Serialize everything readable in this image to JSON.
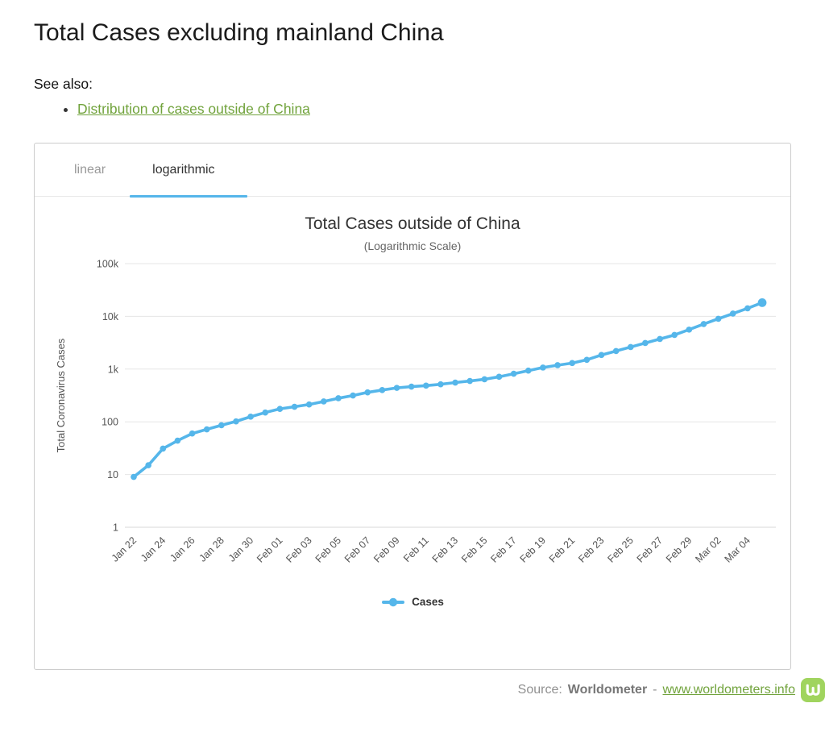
{
  "page": {
    "title": "Total Cases excluding mainland China",
    "see_also_label": "See also:",
    "see_also_link": "Distribution of cases outside of China"
  },
  "tabs": {
    "linear_label": "linear",
    "logarithmic_label": "logarithmic",
    "active": "logarithmic"
  },
  "chart_data": {
    "type": "line",
    "title": "Total Cases outside of China",
    "subtitle": "(Logarithmic Scale)",
    "xlabel": "",
    "ylabel": "Total Coronavirus Cases",
    "yscale": "log",
    "ylim": [
      1,
      100000
    ],
    "ytick_labels": [
      "1",
      "10",
      "100",
      "1k",
      "10k",
      "100k"
    ],
    "grid": "horizontal",
    "legend_position": "bottom",
    "x_label_every": 2,
    "line_color": "#55b6ea",
    "grid_color": "#e6e6e6",
    "axis_label_color": "#555555",
    "categories": [
      "Jan 22",
      "Jan 23",
      "Jan 24",
      "Jan 25",
      "Jan 26",
      "Jan 27",
      "Jan 28",
      "Jan 29",
      "Jan 30",
      "Jan 31",
      "Feb 01",
      "Feb 02",
      "Feb 03",
      "Feb 04",
      "Feb 05",
      "Feb 06",
      "Feb 07",
      "Feb 08",
      "Feb 09",
      "Feb 10",
      "Feb 11",
      "Feb 12",
      "Feb 13",
      "Feb 14",
      "Feb 15",
      "Feb 16",
      "Feb 17",
      "Feb 18",
      "Feb 19",
      "Feb 20",
      "Feb 21",
      "Feb 22",
      "Feb 23",
      "Feb 24",
      "Feb 25",
      "Feb 26",
      "Feb 27",
      "Feb 28",
      "Feb 29",
      "Mar 01",
      "Mar 02",
      "Mar 03",
      "Mar 04",
      "Mar 05"
    ],
    "series": [
      {
        "name": "Cases",
        "values": [
          9,
          15,
          31,
          44,
          60,
          72,
          86,
          102,
          125,
          150,
          176,
          193,
          213,
          243,
          280,
          315,
          362,
          400,
          440,
          465,
          485,
          515,
          555,
          595,
          640,
          715,
          815,
          935,
          1070,
          1185,
          1300,
          1500,
          1850,
          2200,
          2620,
          3120,
          3720,
          4440,
          5600,
          7150,
          9000,
          11300,
          14200,
          18200
        ]
      }
    ]
  },
  "footer": {
    "source_label": "Source:",
    "source_name": "Worldometer",
    "separator": "-",
    "link": "www.worldometers.info",
    "logo_letter": "W"
  }
}
